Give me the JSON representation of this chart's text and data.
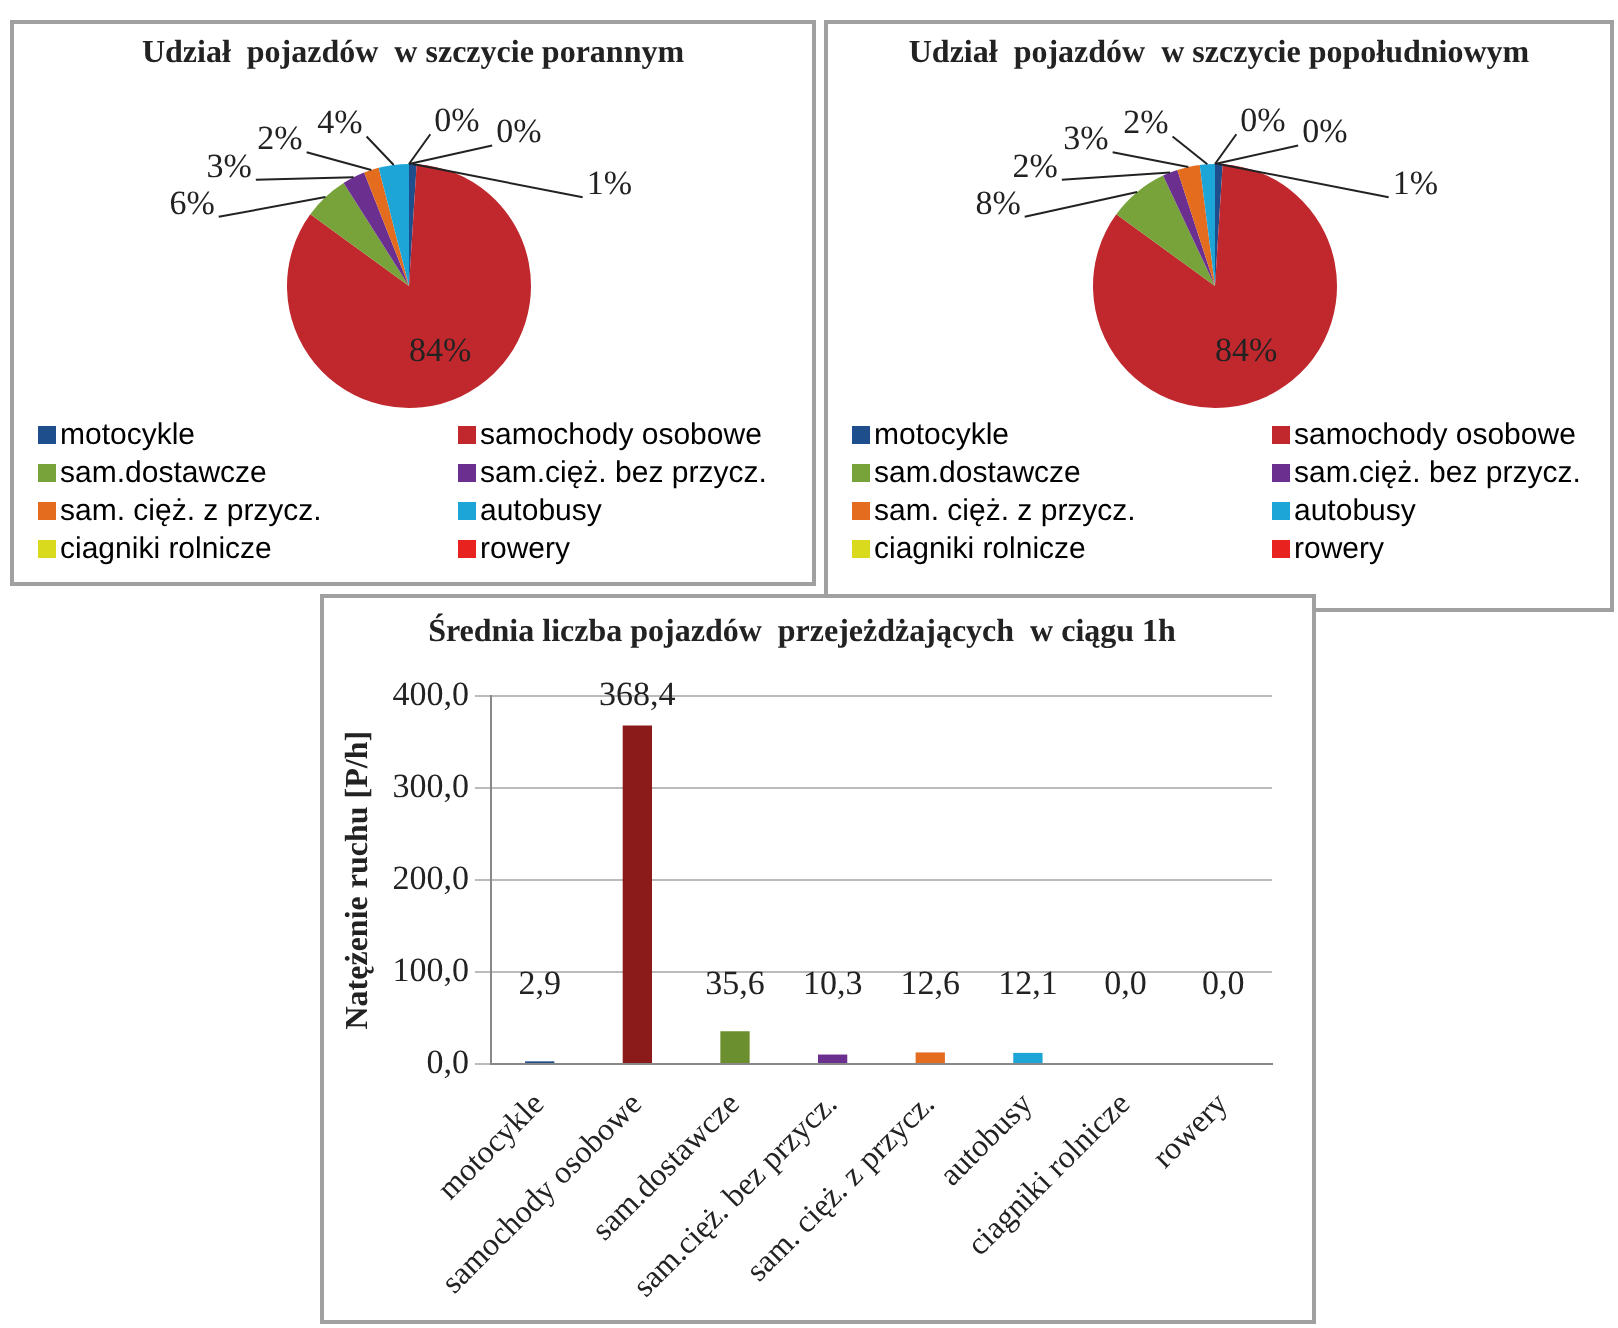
{
  "chart_data": [
    {
      "type": "pie",
      "title": "Udział  pojazdów  w szczycie porannym",
      "categories": [
        "motocykle",
        "samochody osobowe",
        "sam.dostawcze",
        "sam.cięż. bez przycz.",
        "sam. cięż. z przycz.",
        "autobusy",
        "ciagniki rolnicze",
        "rowery"
      ],
      "values": [
        1,
        84,
        6,
        3,
        2,
        4,
        0,
        0
      ],
      "value_labels": [
        "1%",
        "84%",
        "6%",
        "3%",
        "2%",
        "4%",
        "0%",
        "0%"
      ],
      "colors": [
        "#1f4e8c",
        "#c0282d",
        "#77a33a",
        "#6a2f8f",
        "#e46c1e",
        "#1ea5d8",
        "#d9d91e",
        "#e8221e"
      ],
      "legend": "bottom"
    },
    {
      "type": "pie",
      "title": "Udział  pojazdów  w szczycie popołudniowym",
      "categories": [
        "motocykle",
        "samochody osobowe",
        "sam.dostawcze",
        "sam.cięż. bez przycz.",
        "sam. cięż. z przycz.",
        "autobusy",
        "ciagniki rolnicze",
        "rowery"
      ],
      "values": [
        1,
        84,
        8,
        2,
        3,
        2,
        0,
        0
      ],
      "value_labels": [
        "1%",
        "84%",
        "8%",
        "2%",
        "3%",
        "2%",
        "0%",
        "0%"
      ],
      "colors": [
        "#1f4e8c",
        "#c0282d",
        "#77a33a",
        "#6a2f8f",
        "#e46c1e",
        "#1ea5d8",
        "#d9d91e",
        "#e8221e"
      ],
      "legend": "bottom"
    },
    {
      "type": "bar",
      "title": "Średnia liczba pojazdów  przejeżdżających  w ciągu 1h",
      "ylabel": "Natężenie ruchu [P/h]",
      "categories": [
        "motocykle",
        "samochody osobowe",
        "sam.dostawcze",
        "sam.cięż. bez przycz.",
        "sam. cięż. z przycz.",
        "autobusy",
        "ciagniki rolnicze",
        "rowery"
      ],
      "values": [
        2.9,
        368.4,
        35.6,
        10.3,
        12.6,
        12.1,
        0.0,
        0.0
      ],
      "value_labels": [
        "2,9",
        "368,4",
        "35,6",
        "10,3",
        "12,6",
        "12,1",
        "0,0",
        "0,0"
      ],
      "colors": [
        "#1f4e8c",
        "#8b1a1a",
        "#6b8e2f",
        "#6a2f8f",
        "#e46c1e",
        "#1ea5d8",
        "#d9d91e",
        "#e8221e"
      ],
      "ylim": [
        0,
        400
      ],
      "yticks": [
        {
          "value": 0,
          "label": "0,0"
        },
        {
          "value": 100,
          "label": "100,0"
        },
        {
          "value": 200,
          "label": "200,0"
        },
        {
          "value": 300,
          "label": "300,0"
        },
        {
          "value": 400,
          "label": "400,0"
        }
      ],
      "grid": "y"
    }
  ]
}
